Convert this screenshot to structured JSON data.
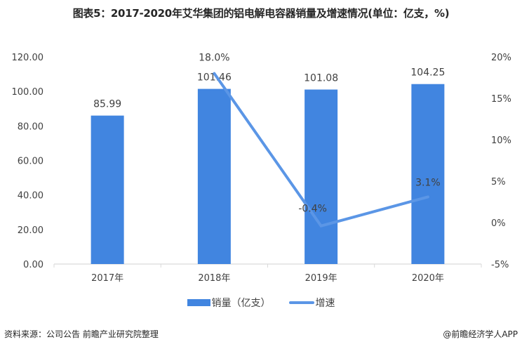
{
  "title": "图表5：2017-2020年艾华集团的铝电解电容器销量及增速情况(单位：亿支，%)",
  "legend": {
    "bar_label": "销量（亿支）",
    "line_label": "增速"
  },
  "footer": {
    "source": "资料来源：公司公告 前瞻产业研究院整理",
    "credit": "@前瞻经济学人APP"
  },
  "colors": {
    "bar": "#4185e0",
    "line": "#5b96e6",
    "axis": "#d9d9d9",
    "text": "#404040"
  },
  "chart_data": {
    "type": "bar+line",
    "title": "图表5：2017-2020年艾华集团的铝电解电容器销量及增速情况(单位：亿支，%)",
    "categories": [
      "2017年",
      "2018年",
      "2019年",
      "2020年"
    ],
    "series": [
      {
        "name": "销量（亿支）",
        "type": "bar",
        "axis": "left",
        "values": [
          85.99,
          101.46,
          101.08,
          104.25
        ],
        "labels": [
          "85.99",
          "101.46",
          "101.08",
          "104.25"
        ]
      },
      {
        "name": "增速",
        "type": "line",
        "axis": "right",
        "values": [
          null,
          18.0,
          -0.4,
          3.1
        ],
        "labels": [
          "",
          "18.0%",
          "-0.4%",
          "3.1%"
        ]
      }
    ],
    "left_axis": {
      "ylim": [
        0,
        120
      ],
      "ticks": [
        "0.00",
        "20.00",
        "40.00",
        "60.00",
        "80.00",
        "100.00",
        "120.00"
      ]
    },
    "right_axis": {
      "ylim": [
        -5,
        20
      ],
      "ticks": [
        "-5%",
        "0%",
        "5%",
        "10%",
        "15%",
        "20%"
      ]
    },
    "xlabel": "",
    "ylabel": "",
    "grid": false,
    "legend_position": "bottom"
  }
}
